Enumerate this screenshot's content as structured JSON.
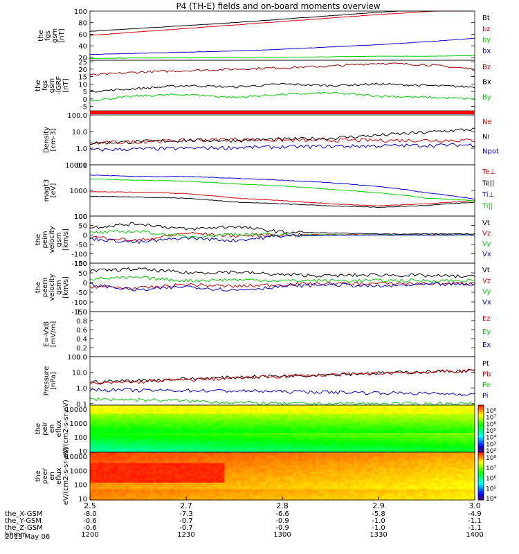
{
  "title": "P4 (TH-E) fields and on-board moments overview",
  "time_axis": {
    "ticks": [
      "2.5",
      "2.7",
      "2.8",
      "2.9",
      "3.0"
    ],
    "rows": [
      {
        "label": "the_X-GSM",
        "values": [
          "-8.0",
          "-7.3",
          "-6.6",
          "-5.8",
          "-4.9"
        ]
      },
      {
        "label": "the_Y-GSM",
        "values": [
          "-0.6",
          "-0.7",
          "-0.9",
          "-1.0",
          "-1.1"
        ]
      },
      {
        "label": "the_Z-GSM",
        "values": [
          "-0.6",
          "-0.7",
          "-0.9",
          "-1.0",
          "-1.1"
        ]
      },
      {
        "label": "hhmm",
        "values": [
          "1200",
          "1230",
          "1300",
          "1330",
          "1400"
        ]
      }
    ],
    "date": "2013 May 06"
  },
  "chart_data": [
    {
      "type": "line",
      "ylabel": "the fgs gsm [nT]",
      "yticks": [
        "100",
        "80",
        "60",
        "40",
        "20"
      ],
      "ylim": [
        15,
        100
      ],
      "series": [
        {
          "name": "Bt",
          "color": "#000000",
          "values": [
            65,
            70,
            75,
            80,
            86,
            92,
            98,
            103,
            108
          ]
        },
        {
          "name": "bz",
          "color": "#cc0000",
          "values": [
            58,
            64,
            70,
            76,
            82,
            88,
            94,
            99,
            104
          ]
        },
        {
          "name": "by",
          "color": "#00cc00",
          "values": [
            18,
            19,
            19,
            20,
            20,
            21,
            22,
            22,
            23
          ]
        },
        {
          "name": "bx",
          "color": "#0000cc",
          "values": [
            25,
            27,
            29,
            31,
            34,
            38,
            42,
            47,
            53
          ]
        }
      ]
    },
    {
      "type": "line",
      "ylabel": "the fgs gsm -IGRF [nT]",
      "yticks": [
        "25",
        "20",
        "15",
        "10",
        "5",
        "0",
        "-5"
      ],
      "ylim": [
        -8,
        26
      ],
      "series": [
        {
          "name": "Bz",
          "color": "#990000",
          "values": [
            16,
            18,
            19,
            20,
            21,
            22,
            24,
            23,
            20
          ]
        },
        {
          "name": "Bx",
          "color": "#000000",
          "values": [
            5,
            7,
            9,
            8,
            10,
            9,
            10,
            9,
            8
          ]
        },
        {
          "name": "By",
          "color": "#00cc00",
          "values": [
            -1,
            2,
            3,
            1,
            3,
            4,
            2,
            1,
            0
          ]
        }
      ]
    },
    {
      "type": "line",
      "ylabel": "Density [cm-3]",
      "scale": "log",
      "yticks": [
        "100.0",
        "10.0",
        "1.0",
        "0.1"
      ],
      "ylim": [
        0.1,
        100
      ],
      "series": [
        {
          "name": "Ne",
          "color": "#cc0000",
          "values": [
            2,
            2.5,
            3,
            3.5,
            3,
            3,
            3,
            3,
            3
          ]
        },
        {
          "name": "Ni",
          "color": "#000000",
          "values": [
            2,
            2.5,
            3,
            3,
            3.5,
            4,
            6,
            9,
            14
          ]
        },
        {
          "name": "Npot",
          "color": "#0000cc",
          "values": [
            0.8,
            0.9,
            1,
            1.1,
            1.2,
            1.3,
            1.4,
            1.5,
            1.6
          ]
        }
      ]
    },
    {
      "type": "line",
      "ylabel": "magt3 [eV]",
      "scale": "log",
      "yticks": [
        "10000",
        "1000",
        "100"
      ],
      "ylim": [
        100,
        10000
      ],
      "series": [
        {
          "name": "Te⊥",
          "color": "#cc0000",
          "values": [
            900,
            850,
            750,
            500,
            400,
            300,
            250,
            300,
            400
          ]
        },
        {
          "name": "Te||",
          "color": "#000000",
          "values": [
            600,
            550,
            500,
            350,
            300,
            250,
            220,
            260,
            350
          ]
        },
        {
          "name": "Ti⊥",
          "color": "#0000cc",
          "values": [
            4000,
            3500,
            3500,
            3000,
            2500,
            2000,
            1400,
            800,
            450
          ]
        },
        {
          "name": "Ti||",
          "color": "#00cc00",
          "values": [
            2800,
            2500,
            2300,
            1800,
            1500,
            1100,
            800,
            500,
            400
          ]
        }
      ]
    },
    {
      "type": "line",
      "ylabel": "the peim velocity gsm [km/s]",
      "yticks": [
        "100",
        "50",
        "0",
        "-50",
        "-100",
        "-150"
      ],
      "ylim": [
        -150,
        100
      ],
      "series": [
        {
          "name": "Vt",
          "color": "#000000",
          "values": [
            40,
            60,
            30,
            45,
            15,
            10,
            5,
            5,
            5
          ]
        },
        {
          "name": "Vz",
          "color": "#cc0000",
          "values": [
            -10,
            -30,
            10,
            -5,
            0,
            2,
            0,
            0,
            0
          ]
        },
        {
          "name": "Vy",
          "color": "#00cc00",
          "values": [
            10,
            20,
            -10,
            5,
            0,
            0,
            0,
            0,
            0
          ]
        },
        {
          "name": "Vx",
          "color": "#0000cc",
          "values": [
            -20,
            -40,
            -15,
            -30,
            -5,
            -2,
            0,
            0,
            0
          ]
        }
      ]
    },
    {
      "type": "line",
      "ylabel": "the peem velocity gsm [km/s]",
      "yticks": [
        "100",
        "50",
        "0",
        "-50",
        "-100",
        "-150"
      ],
      "ylim": [
        -150,
        100
      ],
      "series": [
        {
          "name": "Vt",
          "color": "#000000",
          "values": [
            60,
            70,
            50,
            55,
            40,
            35,
            40,
            35,
            30
          ]
        },
        {
          "name": "Vz",
          "color": "#cc0000",
          "values": [
            -20,
            -30,
            -10,
            -20,
            -10,
            -5,
            -5,
            -5,
            -5
          ]
        },
        {
          "name": "Vy",
          "color": "#00cc00",
          "values": [
            20,
            25,
            10,
            15,
            10,
            10,
            10,
            10,
            10
          ]
        },
        {
          "name": "Vx",
          "color": "#0000cc",
          "values": [
            -10,
            -40,
            -20,
            -40,
            -20,
            -10,
            -20,
            -10,
            -10
          ]
        }
      ]
    },
    {
      "type": "line",
      "ylabel": "E=-VxB [mV/m]",
      "yticks": [
        "1.0",
        "0.8",
        "0.6",
        "0.4",
        "0.2",
        "0.0"
      ],
      "ylim": [
        0,
        1
      ],
      "series": [
        {
          "name": "Ez",
          "color": "#cc0000",
          "values": []
        },
        {
          "name": "Ey",
          "color": "#00cc00",
          "values": []
        },
        {
          "name": "Ex",
          "color": "#0000cc",
          "values": []
        }
      ]
    },
    {
      "type": "line",
      "ylabel": "Pressure [nPa]",
      "scale": "log",
      "yticks": [
        "100.0",
        "10.0",
        "1.0",
        "0.1"
      ],
      "ylim": [
        0.08,
        100
      ],
      "series": [
        {
          "name": "Pt",
          "color": "#000000",
          "values": [
            2.4,
            3.0,
            3.8,
            4.8,
            6.0,
            7.4,
            9.0,
            11,
            13
          ]
        },
        {
          "name": "Pb",
          "color": "#cc0000",
          "values": [
            1.8,
            2.5,
            3.3,
            4.3,
            5.5,
            7.0,
            8.7,
            10.5,
            12.5
          ]
        },
        {
          "name": "Pe",
          "color": "#00cc00",
          "values": [
            0.2,
            0.18,
            0.15,
            0.12,
            0.1,
            0.1,
            0.1,
            0.1,
            0.1
          ]
        },
        {
          "name": "Pi",
          "color": "#0000cc",
          "values": [
            0.8,
            0.7,
            0.7,
            0.65,
            0.6,
            0.55,
            0.5,
            0.45,
            0.4
          ]
        }
      ]
    },
    {
      "type": "heatmap",
      "ylabel": "the peir en eflux eV/(cm2-s-sr-eV)",
      "scale": "log",
      "yticks": [
        "10000",
        "1000",
        "100",
        "10"
      ],
      "ylim": [
        8,
        20000
      ],
      "colorbar": {
        "ticks": [
          "10⁸",
          "10⁷",
          "10⁶",
          "10⁵",
          "10⁴",
          "10³",
          "10²"
        ]
      }
    },
    {
      "type": "heatmap",
      "ylabel": "the peer en eflux eV/(cm2-s-sr-eV)",
      "scale": "log",
      "yticks": [
        "10000",
        "1000",
        "100",
        "10"
      ],
      "ylim": [
        8,
        20000
      ],
      "colorbar": {
        "ticks": [
          "10⁸",
          "10⁷",
          "10⁶",
          "10⁵",
          "10⁴"
        ]
      }
    }
  ]
}
